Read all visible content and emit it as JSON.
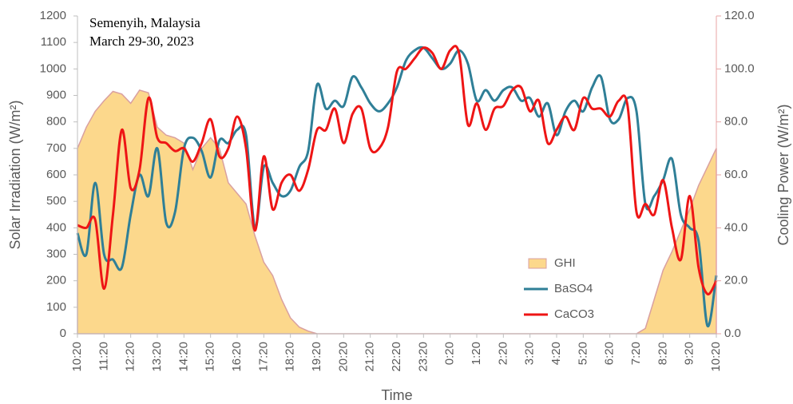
{
  "chart_data": {
    "type": "line",
    "annotations": [
      "Semenyih, Malaysia",
      "March 29-30, 2023"
    ],
    "x_label": "Time",
    "y_label": "Solar Irradiation (W/m²)",
    "y2_label": "Cooling Power (W/m²)",
    "categories": [
      "10:20",
      null,
      null,
      "11:20",
      null,
      null,
      "12:20",
      null,
      null,
      "13:20",
      null,
      null,
      "14:20",
      null,
      null,
      "15:20",
      null,
      null,
      "16:20",
      null,
      null,
      "17:20",
      null,
      null,
      "18:20",
      null,
      null,
      "19:20",
      null,
      null,
      "20:20",
      null,
      null,
      "21:20",
      null,
      null,
      "22:20",
      null,
      null,
      "23:20",
      null,
      null,
      "0:20",
      null,
      null,
      "1:20",
      null,
      null,
      "2:20",
      null,
      null,
      "3:20",
      null,
      null,
      "4:20",
      null,
      null,
      "5:20",
      null,
      null,
      "6:20",
      null,
      null,
      "7:20",
      null,
      null,
      "8:20",
      null,
      null,
      "9:20",
      null,
      null,
      "10:20"
    ],
    "series": [
      {
        "name": "GHI",
        "kind": "area",
        "color": "#fcd88c",
        "edge_color": "#d9a0a0",
        "axis": "y",
        "values": [
          700,
          780,
          840,
          880,
          915,
          905,
          870,
          920,
          910,
          780,
          750,
          740,
          720,
          620,
          700,
          740,
          700,
          570,
          530,
          490,
          370,
          270,
          220,
          130,
          60,
          25,
          10,
          0,
          0,
          0,
          0,
          0,
          0,
          0,
          0,
          0,
          0,
          0,
          0,
          0,
          0,
          0,
          0,
          0,
          0,
          0,
          0,
          0,
          0,
          0,
          0,
          0,
          0,
          0,
          0,
          0,
          0,
          0,
          0,
          0,
          0,
          0,
          0,
          0,
          20,
          130,
          240,
          310,
          390,
          470,
          560,
          630,
          700
        ]
      },
      {
        "name": "BaSO4",
        "kind": "line",
        "color": "#2f7f97",
        "axis": "y2",
        "values": [
          38,
          30,
          57,
          30,
          28,
          25,
          45,
          60,
          52,
          70,
          42,
          46,
          70,
          74,
          69,
          59,
          73,
          72,
          77,
          75,
          40,
          63,
          57,
          52,
          54,
          63,
          69,
          94,
          85,
          88,
          86,
          97,
          93,
          87,
          84,
          87,
          93,
          103,
          107,
          108,
          104,
          100,
          102,
          107,
          102,
          88,
          92,
          88,
          92,
          93,
          88,
          89,
          82,
          87,
          75,
          84,
          88,
          84,
          93,
          97,
          81,
          81,
          89,
          84,
          49,
          52,
          58,
          66,
          45,
          40,
          35,
          3,
          22
        ]
      },
      {
        "name": "CaCO3",
        "kind": "line",
        "color": "#ee1515",
        "axis": "y2",
        "values": [
          41,
          40,
          43,
          17,
          45,
          77,
          55,
          62,
          89,
          74,
          72,
          69,
          70,
          65,
          72,
          81,
          67,
          70,
          82,
          70,
          39,
          67,
          47,
          57,
          60,
          54,
          62,
          77,
          77,
          85,
          72,
          83,
          85,
          70,
          70,
          78,
          99,
          100,
          104,
          108,
          106,
          100,
          107,
          106,
          79,
          87,
          77,
          85,
          86,
          92,
          93,
          84,
          88,
          72,
          77,
          82,
          77,
          89,
          85,
          85,
          82,
          88,
          86,
          46,
          49,
          45,
          58,
          40,
          28,
          52,
          25,
          15,
          20
        ]
      }
    ],
    "ylim": [
      0,
      1200
    ],
    "yticks": [
      0,
      100,
      200,
      300,
      400,
      500,
      600,
      700,
      800,
      900,
      1000,
      1100,
      1200
    ],
    "y2lim": [
      0,
      120
    ],
    "y2ticks": [
      {
        "value": 0,
        "label": "0.0"
      },
      {
        "value": 20,
        "label": "20.0"
      },
      {
        "value": 40,
        "label": "40.0"
      },
      {
        "value": 60,
        "label": "60.0"
      },
      {
        "value": 80,
        "label": "80.0"
      },
      {
        "value": 100,
        "label": "100.0"
      },
      {
        "value": 120,
        "label": "120.0"
      }
    ],
    "axis_color": "#bfbfbf",
    "y2_axis_color": "#e8a5a5",
    "grid": false,
    "legend_position": "inside-lower-right"
  }
}
